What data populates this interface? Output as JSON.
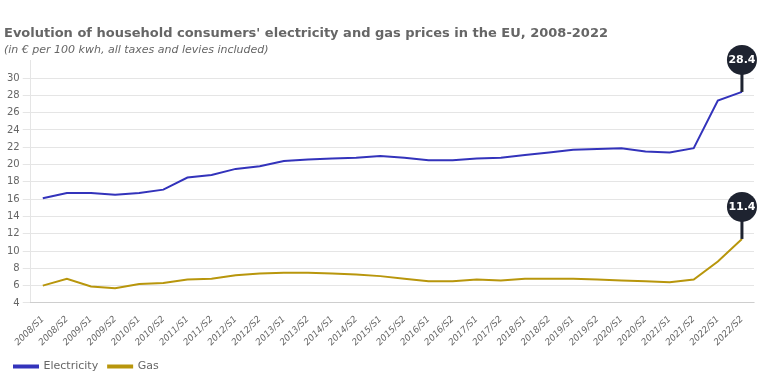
{
  "chart_data": {
    "type": "line",
    "title": "Evolution of household consumers' electricity and gas prices in the EU, 2008-2022",
    "subtitle": "(in € per 100 kwh, all taxes and levies included)",
    "categories": [
      "2008/S1",
      "2008/S2",
      "2009/S1",
      "2009/S2",
      "2010/S1",
      "2010/S2",
      "2011/S1",
      "2011/S2",
      "2012/S1",
      "2012/S2",
      "2013/S1",
      "2013/S2",
      "2014/S1",
      "2014/S2",
      "2015/S1",
      "2015/S2",
      "2016/S1",
      "2016/S2",
      "2017/S1",
      "2017/S2",
      "2018/S1",
      "2018/S2",
      "2019/S1",
      "2019/S2",
      "2020/S1",
      "2020/S2",
      "2021/S1",
      "2021/S2",
      "2022/S1",
      "2022/S2"
    ],
    "series": [
      {
        "name": "Electricity",
        "color": "#3333bb",
        "values": [
          16.1,
          16.7,
          16.7,
          16.5,
          16.7,
          17.1,
          18.5,
          18.8,
          19.5,
          19.8,
          20.4,
          20.6,
          20.7,
          20.8,
          21.0,
          20.8,
          20.5,
          20.5,
          20.7,
          20.8,
          21.1,
          21.4,
          21.7,
          21.8,
          21.9,
          21.5,
          21.4,
          21.9,
          27.4,
          28.4
        ]
      },
      {
        "name": "Gas",
        "color": "#b8960c",
        "values": [
          6.0,
          6.8,
          5.9,
          5.7,
          6.2,
          6.3,
          6.7,
          6.8,
          7.2,
          7.4,
          7.5,
          7.5,
          7.4,
          7.3,
          7.1,
          6.8,
          6.5,
          6.5,
          6.7,
          6.6,
          6.8,
          6.8,
          6.8,
          6.7,
          6.6,
          6.5,
          6.4,
          6.7,
          8.8,
          11.4
        ]
      }
    ],
    "ylim": [
      4,
      32
    ],
    "yticks": [
      4,
      6,
      8,
      10,
      12,
      14,
      16,
      18,
      20,
      22,
      24,
      26,
      28,
      30
    ],
    "grid": "y",
    "legend": "lower left",
    "marker": "none",
    "annotations": [
      {
        "text": "28.4",
        "x": "2022/S2",
        "y": 28.4,
        "color": "#1e2330"
      },
      {
        "text": "11.4",
        "x": "2022/S2",
        "y": 11.4,
        "color": "#1e2330"
      }
    ]
  }
}
